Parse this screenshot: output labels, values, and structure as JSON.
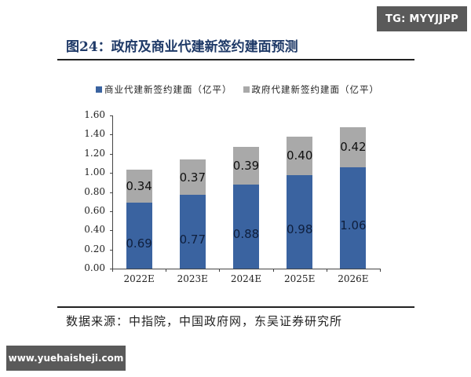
{
  "watermark_top": "TG: MYYJJPP",
  "watermark_bottom": "www.yuehaisheji.com",
  "figure": {
    "title": "图24：政府及商业代建新签约建面预测",
    "source": "数据来源：中指院，中国政府网，东吴证券研究所"
  },
  "colors": {
    "commercial": "#3a63a0",
    "government": "#a9a9a9",
    "title": "#1f3a68"
  },
  "chart_data": {
    "type": "bar",
    "stacked": true,
    "title": "政府及商业代建新签约建面预测",
    "xlabel": "",
    "ylabel": "",
    "ylim": [
      0,
      1.6
    ],
    "yticks": [
      "0.00",
      "0.20",
      "0.40",
      "0.60",
      "0.80",
      "1.00",
      "1.20",
      "1.40",
      "1.60"
    ],
    "categories": [
      "2022E",
      "2023E",
      "2024E",
      "2025E",
      "2026E"
    ],
    "series": [
      {
        "name": "商业代建新签约建面（亿平）",
        "values": [
          0.69,
          0.77,
          0.88,
          0.98,
          1.06
        ],
        "color": "#3a63a0"
      },
      {
        "name": "政府代建新签约建面（亿平）",
        "values": [
          0.34,
          0.37,
          0.39,
          0.4,
          0.42
        ],
        "color": "#a9a9a9"
      }
    ],
    "value_labels": {
      "commercial": [
        "0.69",
        "0.77",
        "0.88",
        "0.98",
        "1.06"
      ],
      "government": [
        "0.34",
        "0.37",
        "0.39",
        "0.40",
        "0.42"
      ]
    },
    "legend_position": "top",
    "grid": false
  }
}
